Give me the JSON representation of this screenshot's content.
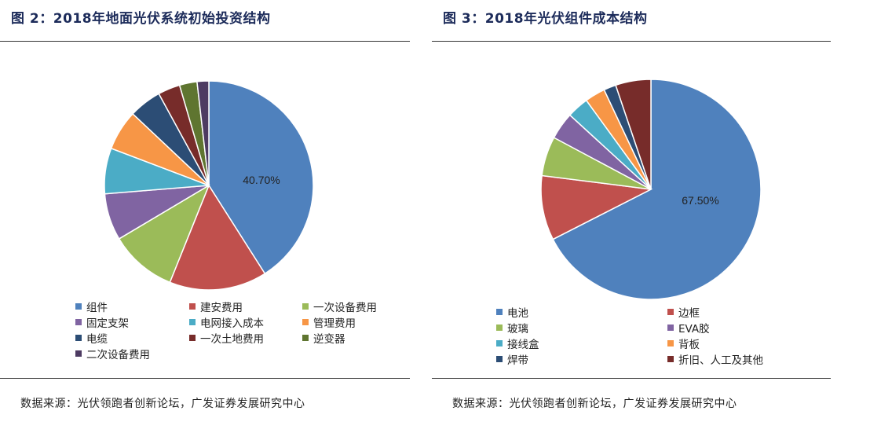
{
  "chart_data": [
    {
      "type": "pie",
      "title": "图 2：2018年地面光伏系统初始投资结构",
      "labels": [
        "组件",
        "建安费用",
        "一次设备费用",
        "固定支架",
        "电网接入成本",
        "管理费用",
        "电缆",
        "一次土地费用",
        "逆变器",
        "二次设备费用"
      ],
      "values": [
        40.7,
        15.0,
        10.3,
        7.2,
        7.0,
        6.2,
        5.0,
        3.4,
        2.7,
        1.8
      ],
      "colors": [
        "#4f81bd",
        "#c0504d",
        "#9bbb59",
        "#8064a2",
        "#4bacc6",
        "#f79646",
        "#2c4d75",
        "#772c2a",
        "#5f7530",
        "#4d3b62"
      ],
      "data_labels": [
        "40.70%",
        "",
        "",
        "",
        "",
        "",
        "",
        "",
        "",
        ""
      ],
      "legend_position": "bottom",
      "source": "数据来源：光伏领跑者创新论坛，广发证券发展研究中心"
    },
    {
      "type": "pie",
      "title": "图 3：2018年光伏组件成本结构",
      "labels": [
        "电池",
        "边框",
        "玻璃",
        "EVA胶",
        "接线盒",
        "背板",
        "焊带",
        "折旧、人工及其他"
      ],
      "values": [
        67.5,
        9.5,
        5.8,
        4.0,
        3.2,
        3.0,
        1.8,
        5.2
      ],
      "colors": [
        "#4f81bd",
        "#c0504d",
        "#9bbb59",
        "#8064a2",
        "#4bacc6",
        "#f79646",
        "#2c4d75",
        "#772c2a"
      ],
      "data_labels": [
        "67.50%",
        "",
        "",
        "",
        "",
        "",
        "",
        ""
      ],
      "legend_position": "bottom",
      "source": "数据来源：光伏领跑者创新论坛，广发证券发展研究中心"
    }
  ]
}
